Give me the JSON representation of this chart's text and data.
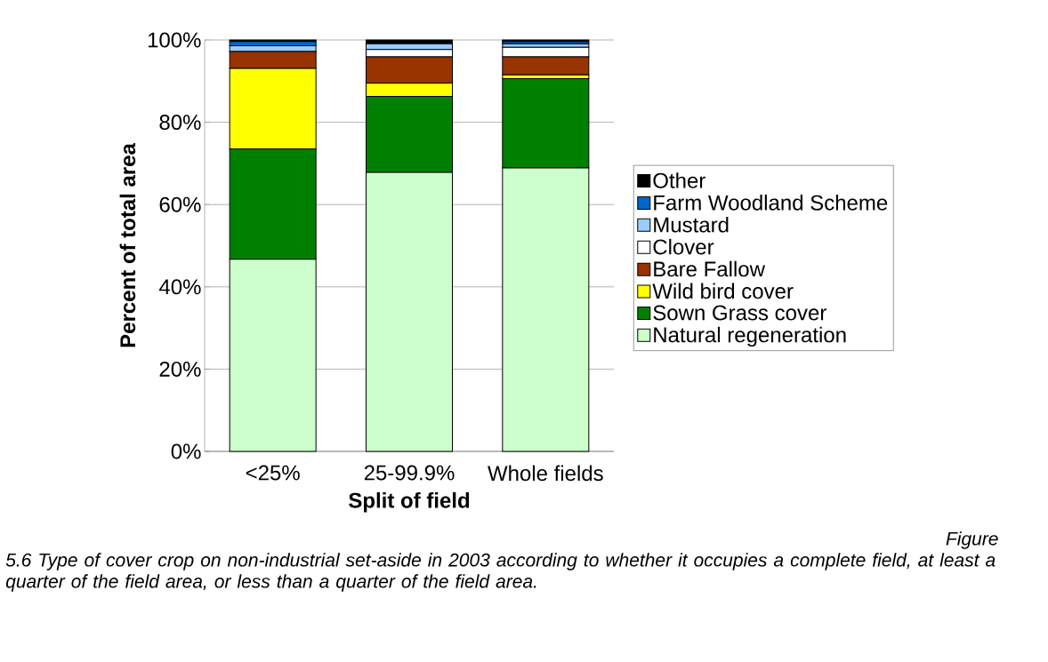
{
  "chart_data": {
    "type": "bar",
    "stacked": true,
    "xlabel": "Split of field",
    "ylabel": "Percent of total area",
    "categories": [
      "<25%",
      "25-99.9%",
      "Whole fields"
    ],
    "series": [
      {
        "name": "Natural regeneration",
        "color": "#ccffcc",
        "values": [
          46.7,
          67.8,
          68.9
        ]
      },
      {
        "name": "Sown Grass cover",
        "color": "#008000",
        "values": [
          26.8,
          18.5,
          21.7
        ]
      },
      {
        "name": "Wild bird cover",
        "color": "#ffff00",
        "values": [
          19.6,
          3.2,
          0.9
        ]
      },
      {
        "name": "Bare Fallow",
        "color": "#993300",
        "values": [
          4.1,
          6.4,
          4.4
        ]
      },
      {
        "name": "Clover",
        "color": "#ffffff",
        "values": [
          0,
          1.8,
          2.3
        ]
      },
      {
        "name": "Mustard",
        "color": "#99ccff",
        "values": [
          1.4,
          1.4,
          0.9
        ]
      },
      {
        "name": "Farm Woodland Scheme",
        "color": "#0066cc",
        "values": [
          1.0,
          0,
          0.5
        ]
      },
      {
        "name": "Other",
        "color": "#000000",
        "values": [
          0.4,
          0.9,
          0.4
        ]
      }
    ],
    "ylim": [
      0,
      100
    ],
    "yticks": [
      {
        "value": 0,
        "label": "0%"
      },
      {
        "value": 20,
        "label": "20%"
      },
      {
        "value": 40,
        "label": "40%"
      },
      {
        "value": 60,
        "label": "60%"
      },
      {
        "value": 80,
        "label": "80%"
      },
      {
        "value": 100,
        "label": "100%"
      }
    ],
    "grid": "y",
    "legend": "right",
    "annotations": [
      "Figure",
      "5.6 Type of cover crop on non-industrial set-aside in 2003  according to whether it occupies a complete field, at least a quarter of the field area, or less than a quarter of the field area."
    ]
  }
}
